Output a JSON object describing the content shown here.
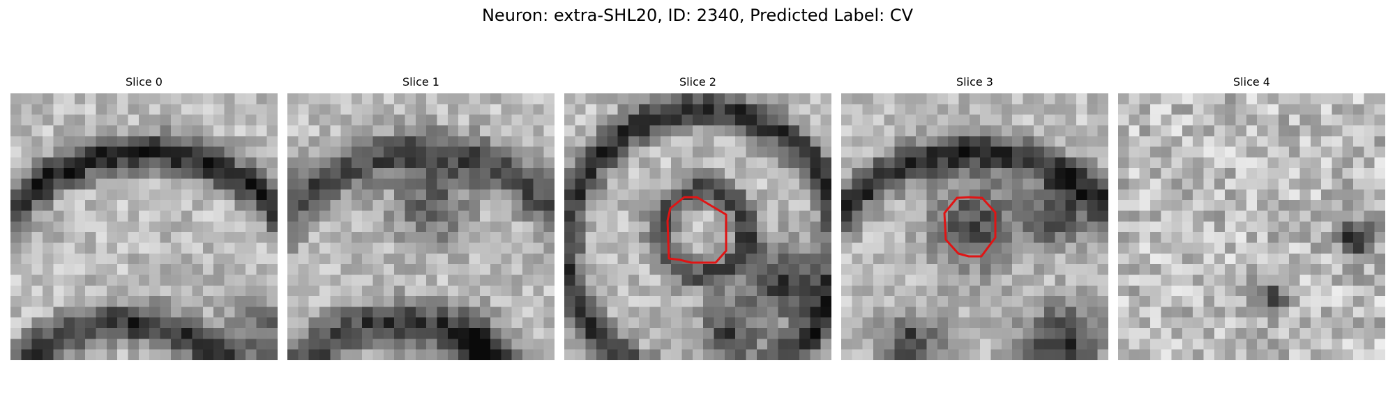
{
  "figure": {
    "title": "Neuron: extra-SHL20, ID: 2340, Predicted Label: CV"
  },
  "overlay_color": "#e01414",
  "slices": [
    {
      "title": "Slice 0",
      "has_contour": false
    },
    {
      "title": "Slice 1",
      "has_contour": false
    },
    {
      "title": "Slice 2",
      "has_contour": true
    },
    {
      "title": "Slice 3",
      "has_contour": true
    },
    {
      "title": "Slice 4",
      "has_contour": false
    }
  ]
}
